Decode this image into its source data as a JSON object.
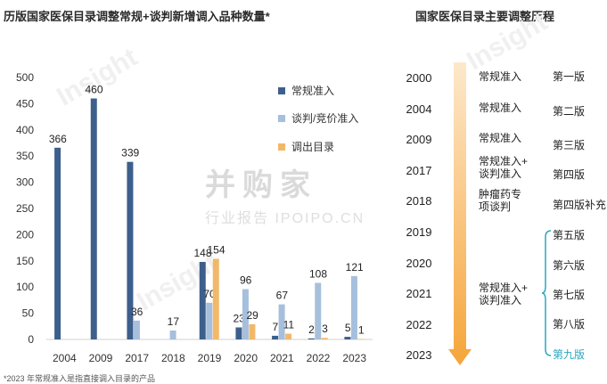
{
  "left_title": "历版国家医保目录调整常规+谈判新增调入品种数量*",
  "right_title": "国家医保目录主要调整历程",
  "footnote": "*2023 年常规准入是指直接调入目录的产品",
  "watermark": {
    "main": "并购家",
    "sub": "行业报告 IPOIPO.CN",
    "brand": "Insight"
  },
  "colors": {
    "regular": "#3d5f8c",
    "negotiation": "#a6bfdc",
    "removal": "#f2b86a",
    "arrow": "#f5a53a",
    "highlight": "#2aa7c0"
  },
  "chart_data": {
    "type": "bar",
    "categories": [
      "2004",
      "2009",
      "2017",
      "2018",
      "2019",
      "2020",
      "2021",
      "2022",
      "2023"
    ],
    "series": [
      {
        "name": "常规准入",
        "values": [
          366,
          460,
          339,
          null,
          148,
          23,
          7,
          2,
          5
        ]
      },
      {
        "name": "谈判/竞价准入",
        "values": [
          null,
          null,
          36,
          17,
          70,
          96,
          67,
          108,
          121
        ]
      },
      {
        "name": "调出目录",
        "values": [
          null,
          null,
          null,
          null,
          154,
          29,
          11,
          3,
          1
        ]
      }
    ],
    "ylim": [
      0,
      500
    ],
    "yticks": [
      0,
      50,
      100,
      150,
      200,
      250,
      300,
      350,
      400,
      450,
      500
    ],
    "legend_position": "top-right",
    "grid": false
  },
  "timeline": {
    "years": [
      "2000",
      "2004",
      "2009",
      "2017",
      "2018",
      "2019",
      "2020",
      "2021",
      "2022",
      "2023"
    ],
    "types": [
      {
        "label": "常规准入",
        "span": "2000"
      },
      {
        "label": "常规准入",
        "span": "2004"
      },
      {
        "label": "常规准入",
        "span": "2009"
      },
      {
        "label": "常规准入+ 谈判准入",
        "span": "2017"
      },
      {
        "label": "肿瘤药专 项谈判",
        "span": "2018"
      },
      {
        "label": "常规准入+ 谈判准入",
        "span": "2019-2023"
      }
    ],
    "versions": [
      "第一版",
      "第二版",
      "第三版",
      "第四版",
      "第四版补充",
      "第五版",
      "第六版",
      "第七版",
      "第八版",
      "第九版"
    ]
  }
}
